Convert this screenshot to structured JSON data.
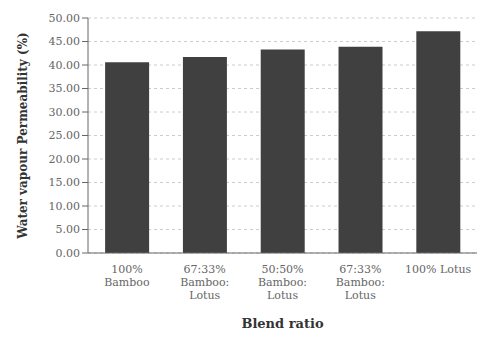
{
  "chart_data": {
    "type": "bar",
    "categories": [
      "100%\nBamboo",
      "67:33%\nBamboo:\nLotus",
      "50:50%\nBamboo:\nLotus",
      "67:33%\nBamboo:\nLotus",
      "100% Lotus"
    ],
    "values": [
      40.6,
      41.7,
      43.3,
      43.9,
      47.2
    ],
    "color": "#404040",
    "xlabel": "Blend ratio",
    "ylabel": "Water vapour Permeability (%)",
    "ylim": [
      0,
      50
    ],
    "yticks": [
      {
        "value": 0,
        "label": "0.00"
      },
      {
        "value": 5,
        "label": "5.00"
      },
      {
        "value": 10,
        "label": "10.00"
      },
      {
        "value": 15,
        "label": "15.00"
      },
      {
        "value": 20,
        "label": "20.00"
      },
      {
        "value": 25,
        "label": "25.00"
      },
      {
        "value": 30,
        "label": "30.00"
      },
      {
        "value": 35,
        "label": "35.00"
      },
      {
        "value": 40,
        "label": "40.00"
      },
      {
        "value": 45,
        "label": "45.00"
      },
      {
        "value": 50,
        "label": "50.00"
      }
    ],
    "grid": true
  }
}
